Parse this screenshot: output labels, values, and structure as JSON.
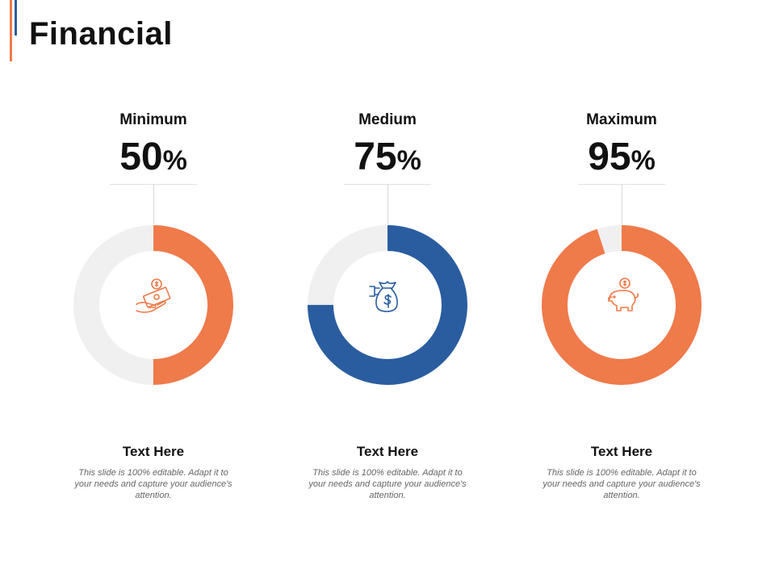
{
  "title": "Financial",
  "colors": {
    "orange": "#ef7a4a",
    "blue": "#2a5d9f",
    "track": "#f0f0f0"
  },
  "chart_data": [
    {
      "type": "pie",
      "variant": "donut",
      "label": "Minimum",
      "value": 50,
      "unit": "%",
      "color": "#ef7a4a",
      "icon": "money-hand-icon"
    },
    {
      "type": "pie",
      "variant": "donut",
      "label": "Medium",
      "value": 75,
      "unit": "%",
      "color": "#2a5d9f",
      "icon": "money-bag-icon"
    },
    {
      "type": "pie",
      "variant": "donut",
      "label": "Maximum",
      "value": 95,
      "unit": "%",
      "color": "#ef7a4a",
      "icon": "piggy-bank-icon"
    }
  ],
  "cards": [
    {
      "title": "Text Here",
      "text": "This slide is 100% editable. Adapt it to your needs and capture your audience's attention."
    },
    {
      "title": "Text Here",
      "text": "This slide is 100% editable. Adapt it to your needs and capture your audience's attention."
    },
    {
      "title": "Text Here",
      "text": "This slide is 100% editable. Adapt it to your needs and capture your audience's attention."
    }
  ]
}
